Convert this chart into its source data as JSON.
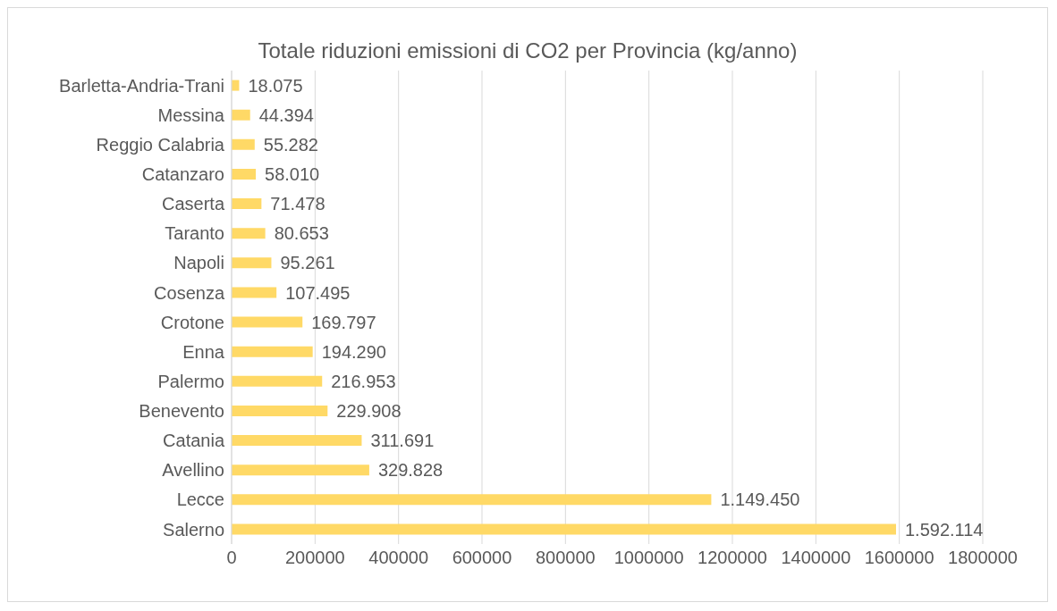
{
  "chart_data": {
    "type": "bar",
    "orientation": "horizontal",
    "title": "Totale riduzioni emissioni di CO2 per Provincia (kg/anno)",
    "categories": [
      "Barletta-Andria-Trani",
      "Messina",
      "Reggio Calabria",
      "Catanzaro",
      "Caserta",
      "Taranto",
      "Napoli",
      "Cosenza",
      "Crotone",
      "Enna",
      "Palermo",
      "Benevento",
      "Catania",
      "Avellino",
      "Lecce",
      "Salerno"
    ],
    "values": [
      18075,
      44394,
      55282,
      58010,
      71478,
      80653,
      95261,
      107495,
      169797,
      194290,
      216953,
      229908,
      311691,
      329828,
      1149450,
      1592114
    ],
    "value_labels": [
      "18.075",
      "44.394",
      "55.282",
      "58.010",
      "71.478",
      "80.653",
      "95.261",
      "107.495",
      "169.797",
      "194.290",
      "216.953",
      "229.908",
      "311.691",
      "329.828",
      "1.149.450",
      "1.592.114"
    ],
    "color": "#ffd966",
    "xlim": [
      0,
      1800000
    ],
    "xticks": [
      0,
      200000,
      400000,
      600000,
      800000,
      1000000,
      1200000,
      1400000,
      1600000,
      1800000
    ],
    "grid": "x"
  }
}
